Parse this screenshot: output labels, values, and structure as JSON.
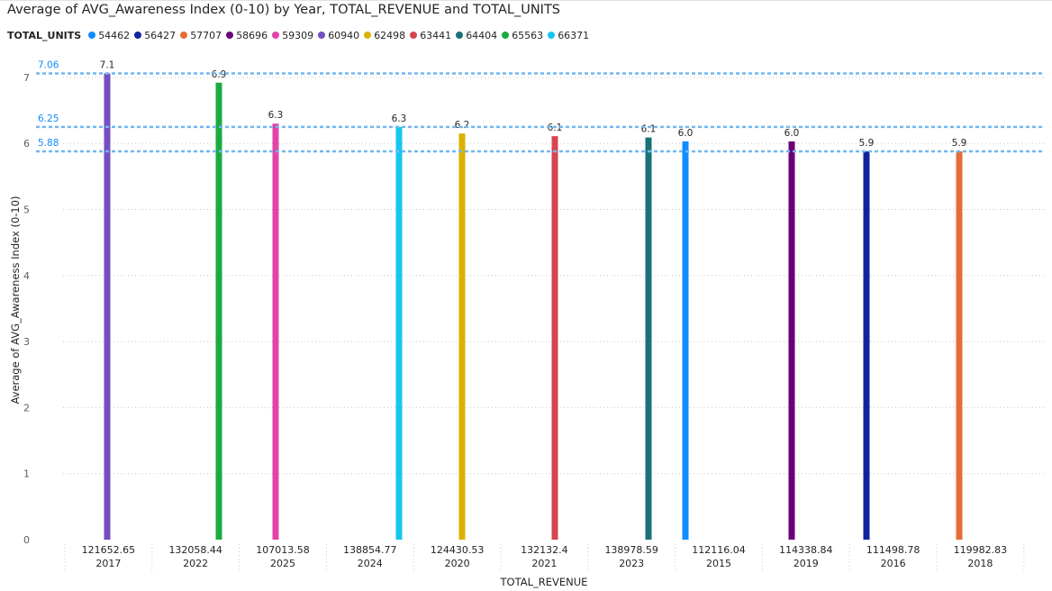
{
  "title": "Average of AVG_Awareness Index (0-10) by Year, TOTAL_REVENUE and TOTAL_UNITS",
  "legend": {
    "title": "TOTAL_UNITS",
    "items": [
      {
        "label": "54462",
        "color": "#118DFF"
      },
      {
        "label": "56427",
        "color": "#12239E"
      },
      {
        "label": "57707",
        "color": "#E66C37"
      },
      {
        "label": "58696",
        "color": "#6B007B"
      },
      {
        "label": "59309",
        "color": "#E044A7"
      },
      {
        "label": "60940",
        "color": "#744EC2"
      },
      {
        "label": "62498",
        "color": "#D9B300"
      },
      {
        "label": "63441",
        "color": "#D64550"
      },
      {
        "label": "64404",
        "color": "#197278"
      },
      {
        "label": "65563",
        "color": "#1AAB40"
      },
      {
        "label": "66371",
        "color": "#15C6F4"
      }
    ]
  },
  "chart_data": {
    "type": "bar",
    "title": "Average of AVG_Awareness Index (0-10) by Year, TOTAL_REVENUE and TOTAL_UNITS",
    "xlabel": "TOTAL_REVENUE",
    "ylabel": "Average of AVG_Awareness Index (0-10)",
    "ylim": [
      0,
      7.2
    ],
    "yticks": [
      0,
      1,
      2,
      3,
      4,
      5,
      6,
      7
    ],
    "grid": true,
    "legend_position": "top-left",
    "categories": [
      {
        "revenue": "121652.65",
        "year": "2017"
      },
      {
        "revenue": "132058.44",
        "year": "2022"
      },
      {
        "revenue": "107013.58",
        "year": "2025"
      },
      {
        "revenue": "138854.77",
        "year": "2024"
      },
      {
        "revenue": "124430.53",
        "year": "2020"
      },
      {
        "revenue": "132132.4",
        "year": "2021"
      },
      {
        "revenue": "138978.59",
        "year": "2023"
      },
      {
        "revenue": "112116.04",
        "year": "2015"
      },
      {
        "revenue": "114338.84",
        "year": "2019"
      },
      {
        "revenue": "111498.78",
        "year": "2016"
      },
      {
        "revenue": "119982.83",
        "year": "2018"
      }
    ],
    "bars": [
      {
        "category": 0,
        "units": "60940",
        "value": 7.06,
        "label": "7.1"
      },
      {
        "category": 1,
        "units": "65563",
        "value": 6.92,
        "label": "6.9"
      },
      {
        "category": 2,
        "units": "59309",
        "value": 6.3,
        "label": "6.3"
      },
      {
        "category": 3,
        "units": "66371",
        "value": 6.25,
        "label": "6.3"
      },
      {
        "category": 4,
        "units": "62498",
        "value": 6.15,
        "label": "6.2"
      },
      {
        "category": 5,
        "units": "63441",
        "value": 6.11,
        "label": "6.1"
      },
      {
        "category": 6,
        "units": "64404",
        "value": 6.09,
        "label": "6.1"
      },
      {
        "category": 7,
        "units": "54462",
        "value": 6.03,
        "label": "6.0"
      },
      {
        "category": 8,
        "units": "58696",
        "value": 6.03,
        "label": "6.0"
      },
      {
        "category": 9,
        "units": "56427",
        "value": 5.88,
        "label": "5.9"
      },
      {
        "category": 10,
        "units": "57707",
        "value": 5.88,
        "label": "5.9"
      }
    ],
    "reference_lines": [
      {
        "value": 7.06,
        "label": "7.06",
        "color": "#71B7F0"
      },
      {
        "value": 6.25,
        "label": "6.25",
        "color": "#71B7F0"
      },
      {
        "value": 5.88,
        "label": "5.88",
        "color": "#71B7F0"
      }
    ]
  }
}
